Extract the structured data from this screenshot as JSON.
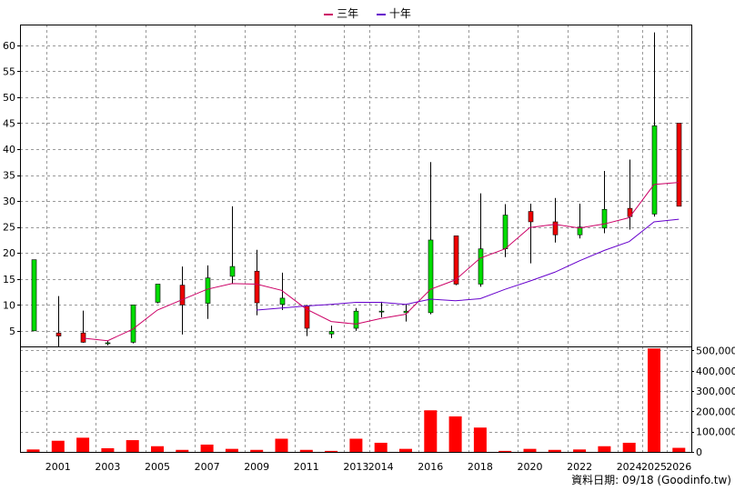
{
  "chart_data": {
    "type": "candlestick",
    "legend": [
      {
        "label": "三年",
        "color": "#cc0066"
      },
      {
        "label": "十年",
        "color": "#6600cc"
      }
    ],
    "price_axis": {
      "ylim": [
        2,
        64
      ],
      "ticks": [
        5,
        10,
        15,
        20,
        25,
        30,
        35,
        40,
        45,
        50,
        55,
        60
      ]
    },
    "volume_axis": {
      "ylim": [
        0,
        520000
      ],
      "ticks": [
        0,
        100000,
        200000,
        300000,
        400000,
        500000
      ],
      "tick_labels": [
        "0",
        "100,000",
        "200,000",
        "300,000",
        "400,000",
        "500,000"
      ]
    },
    "year_labels": [
      "2001",
      "2003",
      "2005",
      "2007",
      "2009",
      "2011",
      "2013",
      "2014",
      "2016",
      "2018",
      "2020",
      "2022",
      "2024",
      "2025",
      "2026"
    ],
    "year_label_positions": [
      1,
      3,
      5,
      7,
      9,
      11,
      13,
      14,
      16,
      18,
      20,
      22,
      24,
      25,
      26
    ],
    "candles": [
      {
        "year": 2000,
        "open": 5.0,
        "high": 18.7,
        "low": 5.0,
        "close": 18.7
      },
      {
        "year": 2001,
        "open": 4.6,
        "high": 11.7,
        "low": 2.0,
        "close": 4.0
      },
      {
        "year": 2002,
        "open": 4.6,
        "high": 8.9,
        "low": 2.7,
        "close": 2.8
      },
      {
        "year": 2003,
        "open": 2.7,
        "high": 3.1,
        "low": 2.2,
        "close": 2.7
      },
      {
        "year": 2004,
        "open": 2.8,
        "high": 10.0,
        "low": 2.6,
        "close": 10.0
      },
      {
        "year": 2005,
        "open": 10.5,
        "high": 14.0,
        "low": 10.3,
        "close": 14.0
      },
      {
        "year": 2006,
        "open": 13.8,
        "high": 17.4,
        "low": 4.3,
        "close": 10.0
      },
      {
        "year": 2007,
        "open": 10.3,
        "high": 17.6,
        "low": 7.3,
        "close": 15.2
      },
      {
        "year": 2008,
        "open": 15.5,
        "high": 29.0,
        "low": 14.0,
        "close": 17.4
      },
      {
        "year": 2009,
        "open": 16.5,
        "high": 20.6,
        "low": 8.0,
        "close": 10.4
      },
      {
        "year": 2010,
        "open": 10.1,
        "high": 16.2,
        "low": 9.0,
        "close": 11.3
      },
      {
        "year": 2011,
        "open": 9.8,
        "high": 10.0,
        "low": 4.0,
        "close": 5.5
      },
      {
        "year": 2012,
        "open": 4.4,
        "high": 6.0,
        "low": 3.6,
        "close": 4.9
      },
      {
        "year": 2013,
        "open": 5.5,
        "high": 9.4,
        "low": 5.0,
        "close": 8.8
      },
      {
        "year": 2014,
        "open": 8.7,
        "high": 10.6,
        "low": 7.6,
        "close": 8.8
      },
      {
        "year": 2015,
        "open": 8.5,
        "high": 10.1,
        "low": 6.8,
        "close": 8.8
      },
      {
        "year": 2016,
        "open": 8.5,
        "high": 37.5,
        "low": 8.2,
        "close": 22.5
      },
      {
        "year": 2017,
        "open": 23.3,
        "high": 23.3,
        "low": 13.8,
        "close": 14.0
      },
      {
        "year": 2018,
        "open": 14.0,
        "high": 31.5,
        "low": 13.5,
        "close": 20.8
      },
      {
        "year": 2019,
        "open": 20.8,
        "high": 29.4,
        "low": 19.2,
        "close": 27.3
      },
      {
        "year": 2020,
        "open": 28.0,
        "high": 29.5,
        "low": 18.0,
        "close": 26.0
      },
      {
        "year": 2021,
        "open": 26.0,
        "high": 30.6,
        "low": 22.0,
        "close": 23.5
      },
      {
        "year": 2022,
        "open": 23.5,
        "high": 29.5,
        "low": 22.8,
        "close": 25.0
      },
      {
        "year": 2023,
        "open": 24.8,
        "high": 35.8,
        "low": 23.8,
        "close": 28.4
      },
      {
        "year": 2024,
        "open": 28.6,
        "high": 38.0,
        "low": 24.5,
        "close": 27.0
      },
      {
        "year": 2025,
        "open": 27.5,
        "high": 62.5,
        "low": 27.0,
        "close": 44.5
      },
      {
        "year": 2026,
        "open": 45.0,
        "high": 45.0,
        "low": 29.0,
        "close": 29.0
      }
    ],
    "volume": [
      12000,
      55000,
      70000,
      18000,
      58000,
      28000,
      10000,
      36000,
      15000,
      10000,
      65000,
      10000,
      5000,
      65000,
      45000,
      15000,
      205000,
      175000,
      120000,
      5000,
      15000,
      10000,
      12000,
      28000,
      45000,
      510000,
      20000
    ],
    "ma3": [
      [
        2002,
        3.6
      ],
      [
        2003,
        3.1
      ],
      [
        2004,
        5.3
      ],
      [
        2005,
        9.0
      ],
      [
        2006,
        11.0
      ],
      [
        2007,
        13.0
      ],
      [
        2008,
        14.1
      ],
      [
        2009,
        14.0
      ],
      [
        2010,
        12.8
      ],
      [
        2011,
        9.2
      ],
      [
        2012,
        6.8
      ],
      [
        2013,
        6.3
      ],
      [
        2014,
        7.4
      ],
      [
        2015,
        8.2
      ],
      [
        2016,
        13.0
      ],
      [
        2017,
        14.8
      ],
      [
        2018,
        19.0
      ],
      [
        2019,
        20.8
      ],
      [
        2020,
        24.9
      ],
      [
        2021,
        25.5
      ],
      [
        2022,
        24.8
      ],
      [
        2023,
        25.6
      ],
      [
        2024,
        26.8
      ],
      [
        2025,
        33.2
      ],
      [
        2026,
        33.6
      ]
    ],
    "ma10": [
      [
        2009,
        9.0
      ],
      [
        2010,
        9.4
      ],
      [
        2011,
        9.8
      ],
      [
        2012,
        10.1
      ],
      [
        2013,
        10.5
      ],
      [
        2014,
        10.5
      ],
      [
        2015,
        10.1
      ],
      [
        2016,
        11.1
      ],
      [
        2017,
        10.8
      ],
      [
        2018,
        11.2
      ],
      [
        2019,
        13.0
      ],
      [
        2020,
        14.6
      ],
      [
        2021,
        16.3
      ],
      [
        2022,
        18.5
      ],
      [
        2023,
        20.5
      ],
      [
        2024,
        22.2
      ],
      [
        2025,
        26.0
      ],
      [
        2026,
        26.5
      ]
    ]
  },
  "footer": {
    "text": "資料日期: 09/18 (Goodinfo.tw)"
  }
}
